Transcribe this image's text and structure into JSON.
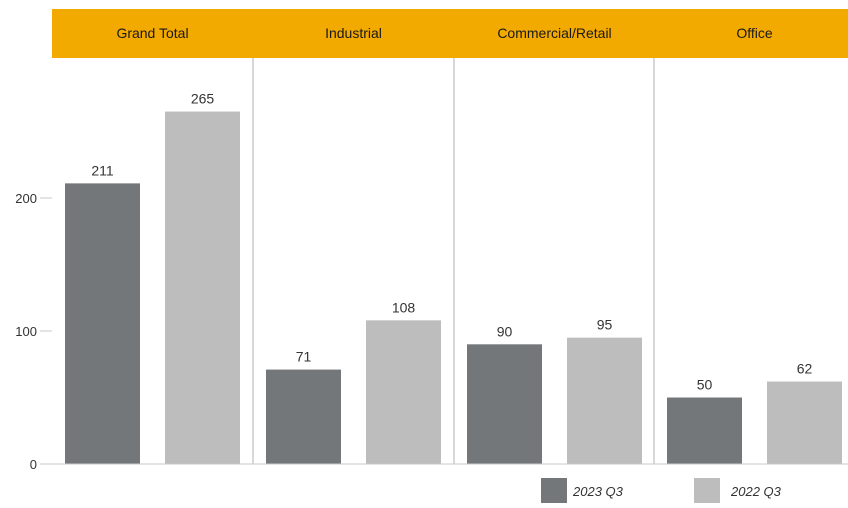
{
  "chart_data": {
    "type": "bar",
    "categories": [
      "Grand Total",
      "Industrial",
      "Commercial/Retail",
      "Office"
    ],
    "series": [
      {
        "name": "2023 Q3",
        "values": [
          211,
          71,
          90,
          50
        ],
        "color": "#747779"
      },
      {
        "name": "2022 Q3",
        "values": [
          265,
          108,
          95,
          62
        ],
        "color": "#bcbdbc"
      }
    ],
    "ylim": [
      0,
      300
    ],
    "yticks": [
      0,
      100,
      200
    ],
    "header_color": "#f2a900",
    "grid": false,
    "legend_position": "bottom-right",
    "title": "",
    "xlabel": "",
    "ylabel": ""
  }
}
